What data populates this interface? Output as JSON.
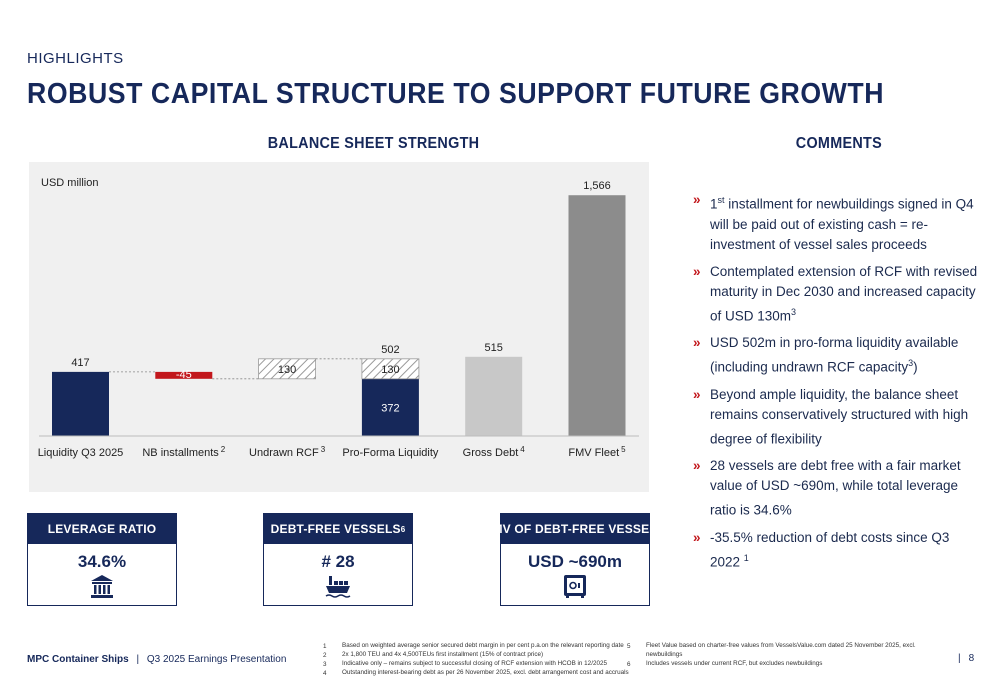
{
  "header": {
    "kicker": "HIGHLIGHTS",
    "title": "ROBUST CAPITAL STRUCTURE TO SUPPORT FUTURE GROWTH"
  },
  "balance_sheet": {
    "heading": "BALANCE SHEET STRENGTH"
  },
  "chart_data": {
    "type": "bar",
    "subtype": "waterfall",
    "unit_label": "USD million",
    "categories": [
      "Liquidity Q3 2025",
      "NB installments",
      "Undrawn RCF",
      "Pro-Forma Liquidity",
      "Gross Debt",
      "FMV Fleet"
    ],
    "category_superscripts": [
      "",
      "2",
      "3",
      "",
      "4",
      "5"
    ],
    "values": [
      417,
      -45,
      130,
      502,
      515,
      1566
    ],
    "pro_forma_breakdown": {
      "cash": 372,
      "undrawn_rcf": 130
    },
    "data_labels": [
      "417",
      "-45",
      "130",
      "502",
      "515",
      "1,566"
    ],
    "stack_labels": [
      "372",
      "130"
    ],
    "ylim": [
      0,
      1600
    ],
    "colors": {
      "navy": "#16285a",
      "red": "#c2171c",
      "light_gray": "#c8c8c8",
      "dark_gray": "#8c8c8c",
      "hatch": "#9a9a9a"
    }
  },
  "comments": {
    "heading": "COMMENTS",
    "items": [
      {
        "parts": [
          "1",
          "st",
          " installment for newbuildings signed in Q4 will be paid out of existing cash = re-investment of vessel sales proceeds"
        ]
      },
      {
        "parts": [
          "Contemplated extension of RCF with revised maturity in Dec 2030 and increased capacity of USD 130m",
          "3",
          ""
        ]
      },
      {
        "parts": [
          "USD 502m in pro-forma liquidity available (including undrawn RCF capacity",
          "3",
          ")"
        ]
      },
      {
        "parts": [
          "Beyond ample liquidity, the balance sheet remains conservatively structured with high degree of flexibility",
          "",
          ""
        ]
      },
      {
        "parts": [
          "28 vessels are debt free with a fair market value of USD ~690m, while total leverage ratio is 34.6%",
          "",
          ""
        ]
      },
      {
        "parts": [
          "-35.5% reduction of debt costs since Q3 2022 ",
          "1",
          ""
        ]
      }
    ]
  },
  "kpis": [
    {
      "label": "LEVERAGE RATIO",
      "sup": "",
      "value": "34.6%",
      "icon": "bank-icon"
    },
    {
      "label": "DEBT-FREE VESSELS ",
      "sup": "6",
      "value": "# 28",
      "icon": "container-ship-icon"
    },
    {
      "label": "FMV OF DEBT-FREE VESSELS",
      "sup": "",
      "value": "USD ~690m",
      "icon": "safe-icon"
    }
  ],
  "footer": {
    "company": "MPC Container Ships",
    "separator": "|",
    "presentation": "Q3 2025 Earnings Presentation",
    "page_separator": "|",
    "page": "8",
    "footnotes": [
      {
        "num": "1",
        "text": "Based on weighted average senior secured debt margin in per cent p.a.on the relevant reporting date"
      },
      {
        "num": "2",
        "text": "2x 1,800 TEU and 4x 4,500TEUs first installment (15% of contract price)"
      },
      {
        "num": "3",
        "text": "Indicative only – remains subject to successful closing of RCF extension with HCOB in 12/2025"
      },
      {
        "num": "4",
        "text": "Outstanding interest-bearing debt as per 26 November 2025, excl. debt arrangement cost and accruals"
      },
      {
        "num": "5",
        "text": "Fleet Value based on charter-free values from VesselsValue.com dated 25 November 2025, excl. newbuildings"
      },
      {
        "num": "6",
        "text": "Includes vessels under current RCF, but excludes newbuildings"
      }
    ]
  }
}
